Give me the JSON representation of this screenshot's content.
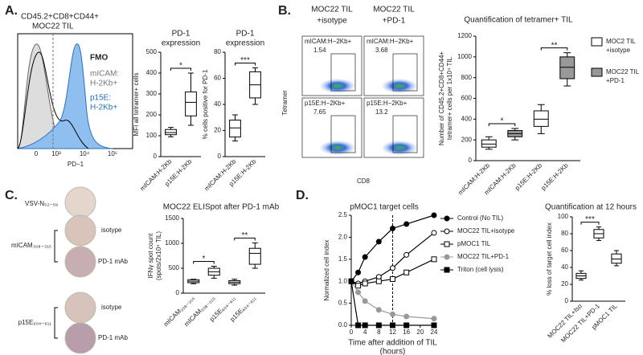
{
  "panels": {
    "letters": [
      "A.",
      "B.",
      "C.",
      "D."
    ],
    "histogram": {
      "title": [
        "CD45.2+CD8+CD44+",
        "MOC22 TIL"
      ],
      "legend": [
        "FMO",
        "mICAM:",
        "H-2Kb+",
        "p15E:",
        "H-2Kb+"
      ],
      "xticks": [
        "0",
        "10³",
        "10⁴",
        "10⁵"
      ],
      "xlabel": "PD−1"
    },
    "flow": {
      "columns": [
        [
          "MOC22 TIL",
          "+isotype"
        ],
        [
          "MOC22 TIL",
          "+PD-1"
        ]
      ],
      "plots": [
        {
          "gate": "mICAM:H−2Kb+",
          "percent": 1.54
        },
        {
          "gate": "mICAM:H−2Kb+",
          "percent": 3.68
        },
        {
          "gate": "p15E:H−2Kb+",
          "percent": 7.65
        },
        {
          "gate": "p15E:H−2Kb+",
          "percent": 13.2
        }
      ],
      "ylabel": "Tetramer",
      "xlabel": "CD8"
    },
    "elispot": {
      "wells": [
        "VSV-N₅₂₋₅₉",
        "isotype",
        "PD-1 mAb",
        "isotype",
        "PD-1 mAb"
      ],
      "groups": [
        "mICAM₃₀₈₋₃₁₅",
        "p15E₆₀₄₋₆₁₁"
      ]
    }
  },
  "chart_data": [
    {
      "type": "box",
      "title": [
        "PD-1",
        "expression"
      ],
      "ylabel": [
        "MFI all tetramer+ cells"
      ],
      "categories": [
        "mICAM:H-2Kb",
        "p15E:H-2Kb"
      ],
      "series": [
        {
          "color": "#ffffff",
          "boxes": [
            {
              "min": 95,
              "q1": 105,
              "median": 115,
              "q3": 130,
              "max": 140
            },
            {
              "min": 150,
              "q1": 195,
              "median": 260,
              "q3": 310,
              "max": 400
            }
          ]
        }
      ],
      "ylim": [
        0,
        500
      ],
      "yticks": [
        0,
        100,
        200,
        300,
        400,
        500
      ],
      "significance": [
        "*"
      ]
    },
    {
      "type": "box",
      "title": [
        "PD-1",
        "expression"
      ],
      "ylabel": [
        "% cells positive for PD-1"
      ],
      "categories": [
        "mICAM:H-2Kb",
        "p15E:H-2Kb"
      ],
      "series": [
        {
          "color": "#ffffff",
          "boxes": [
            {
              "min": 12,
              "q1": 15,
              "median": 22,
              "q3": 28,
              "max": 32
            },
            {
              "min": 40,
              "q1": 45,
              "median": 55,
              "q3": 65,
              "max": 68
            }
          ]
        }
      ],
      "ylim": [
        0,
        80
      ],
      "yticks": [
        0,
        20,
        40,
        60,
        80
      ],
      "significance": [
        "***"
      ]
    },
    {
      "type": "box",
      "title": [
        "Quantification of tetramer+ TIL"
      ],
      "ylabel": [
        "Number of CD45.2+CD8+CD44+",
        "tetramer+ cells per 1x10⁴ TIL"
      ],
      "categories": [
        "mICAM:H-2Kb",
        "mICAM:H-2Kb",
        "p15E:H-2Kb",
        "p15E:H-2Kb"
      ],
      "series": [
        {
          "name": [
            "MOC2 TIL",
            "+isotype"
          ],
          "color": "#ffffff",
          "boxes": [
            {
              "min": 110,
              "q1": 130,
              "median": 160,
              "q3": 200,
              "max": 230
            },
            null,
            {
              "min": 260,
              "q1": 330,
              "median": 400,
              "q3": 480,
              "max": 540
            },
            null
          ]
        },
        {
          "name": [
            "MOC22 TIL",
            "+PD-1"
          ],
          "color": "#999999",
          "boxes": [
            null,
            {
              "min": 200,
              "q1": 230,
              "median": 260,
              "q3": 290,
              "max": 310
            },
            null,
            {
              "min": 720,
              "q1": 790,
              "median": 900,
              "q3": 1000,
              "max": 1040
            }
          ]
        }
      ],
      "ylim": [
        0,
        1200
      ],
      "yticks": [
        0,
        200,
        400,
        600,
        800,
        1000,
        1200
      ],
      "significance": [
        "*",
        "**"
      ]
    },
    {
      "type": "box",
      "title": [
        "MOC22 ELISpot after PD-1 mAb"
      ],
      "ylabel": [
        "IFNγ spot count",
        "(spots/2x10⁴ TIL)"
      ],
      "categories": [
        "mICAM₃₀₈₋₃₁₅",
        "mICAM₃₀₈₋₃₁₅",
        "p15E₆₀₄₋₆₁₁",
        "p15E₆₀₄₋₆₁₁"
      ],
      "series": [
        {
          "color": "#ffffff",
          "boxes": [
            {
              "min": 190,
              "q1": 210,
              "median": 240,
              "q3": 270,
              "max": 280
            },
            {
              "min": 300,
              "q1": 360,
              "median": 430,
              "q3": 500,
              "max": 540
            },
            {
              "min": 160,
              "q1": 190,
              "median": 220,
              "q3": 250,
              "max": 280
            },
            {
              "min": 500,
              "q1": 580,
              "median": 800,
              "q3": 900,
              "max": 1010
            }
          ]
        }
      ],
      "ylim": [
        0,
        1500
      ],
      "yticks": [
        0,
        500,
        1000,
        1500
      ],
      "significance": [
        "*",
        "**"
      ]
    },
    {
      "type": "line",
      "title": [
        "pMOC1 target cells"
      ],
      "ylabel": [
        "Normalized cell index"
      ],
      "xlabel": [
        "Time after addition of TIL",
        "(hours)"
      ],
      "x": [
        0,
        2,
        4,
        8,
        12,
        16,
        24
      ],
      "series": [
        {
          "name": "Control (No TIL)",
          "color": "#000000",
          "marker": "circle",
          "fill": "#000000",
          "values": [
            1.0,
            1.2,
            1.55,
            1.9,
            2.2,
            2.3,
            2.5
          ]
        },
        {
          "name": "MOC22 TIL+isotype",
          "color": "#000000",
          "marker": "circle",
          "fill": "#ffffff",
          "values": [
            1.0,
            0.95,
            1.0,
            1.1,
            1.3,
            1.6,
            2.1
          ]
        },
        {
          "name": "pMOC1 TIL",
          "color": "#000000",
          "marker": "square",
          "fill": "#ffffff",
          "values": [
            1.0,
            0.9,
            0.95,
            1.0,
            1.05,
            1.2,
            1.5
          ]
        },
        {
          "name": "MOC22 TIL+PD-1",
          "color": "#999999",
          "marker": "circle",
          "fill": "#999999",
          "values": [
            1.0,
            0.75,
            0.55,
            0.35,
            0.25,
            0.2,
            0.15
          ]
        },
        {
          "name": "Triton (cell lysis)",
          "color": "#000000",
          "marker": "square",
          "fill": "#000000",
          "values": [
            1.0,
            0.0,
            0.0,
            0.0,
            0.0,
            0.0,
            0.0
          ]
        }
      ],
      "xlim": [
        0,
        24
      ],
      "xticks": [
        0,
        4,
        8,
        12,
        16,
        20,
        24
      ],
      "ylim": [
        0,
        2.5
      ],
      "yticks": [
        {
          "value": 0,
          "label": "0.0"
        },
        0.5,
        {
          "value": 1,
          "label": "1.0"
        },
        1.5,
        {
          "value": 2,
          "label": "2.0"
        },
        2.5
      ],
      "reference_x": 12
    },
    {
      "type": "box",
      "title": [
        "Quantification at 12 hours"
      ],
      "ylabel": [
        "% loss of target cell index"
      ],
      "categories": [
        "MOC22 TIL+Iso",
        "MOC22 TIL+PD-1",
        "pMOC1 TIL"
      ],
      "series": [
        {
          "color": "#ffffff",
          "boxes": [
            {
              "min": 25,
              "q1": 27,
              "median": 30,
              "q3": 33,
              "max": 36
            },
            {
              "min": 72,
              "q1": 75,
              "median": 80,
              "q3": 85,
              "max": 88
            },
            {
              "min": 42,
              "q1": 45,
              "median": 50,
              "q3": 56,
              "max": 60
            }
          ]
        }
      ],
      "ylim": [
        0,
        100
      ],
      "yticks": [
        0,
        20,
        40,
        60,
        80,
        100
      ],
      "significance": [
        "***"
      ]
    }
  ]
}
